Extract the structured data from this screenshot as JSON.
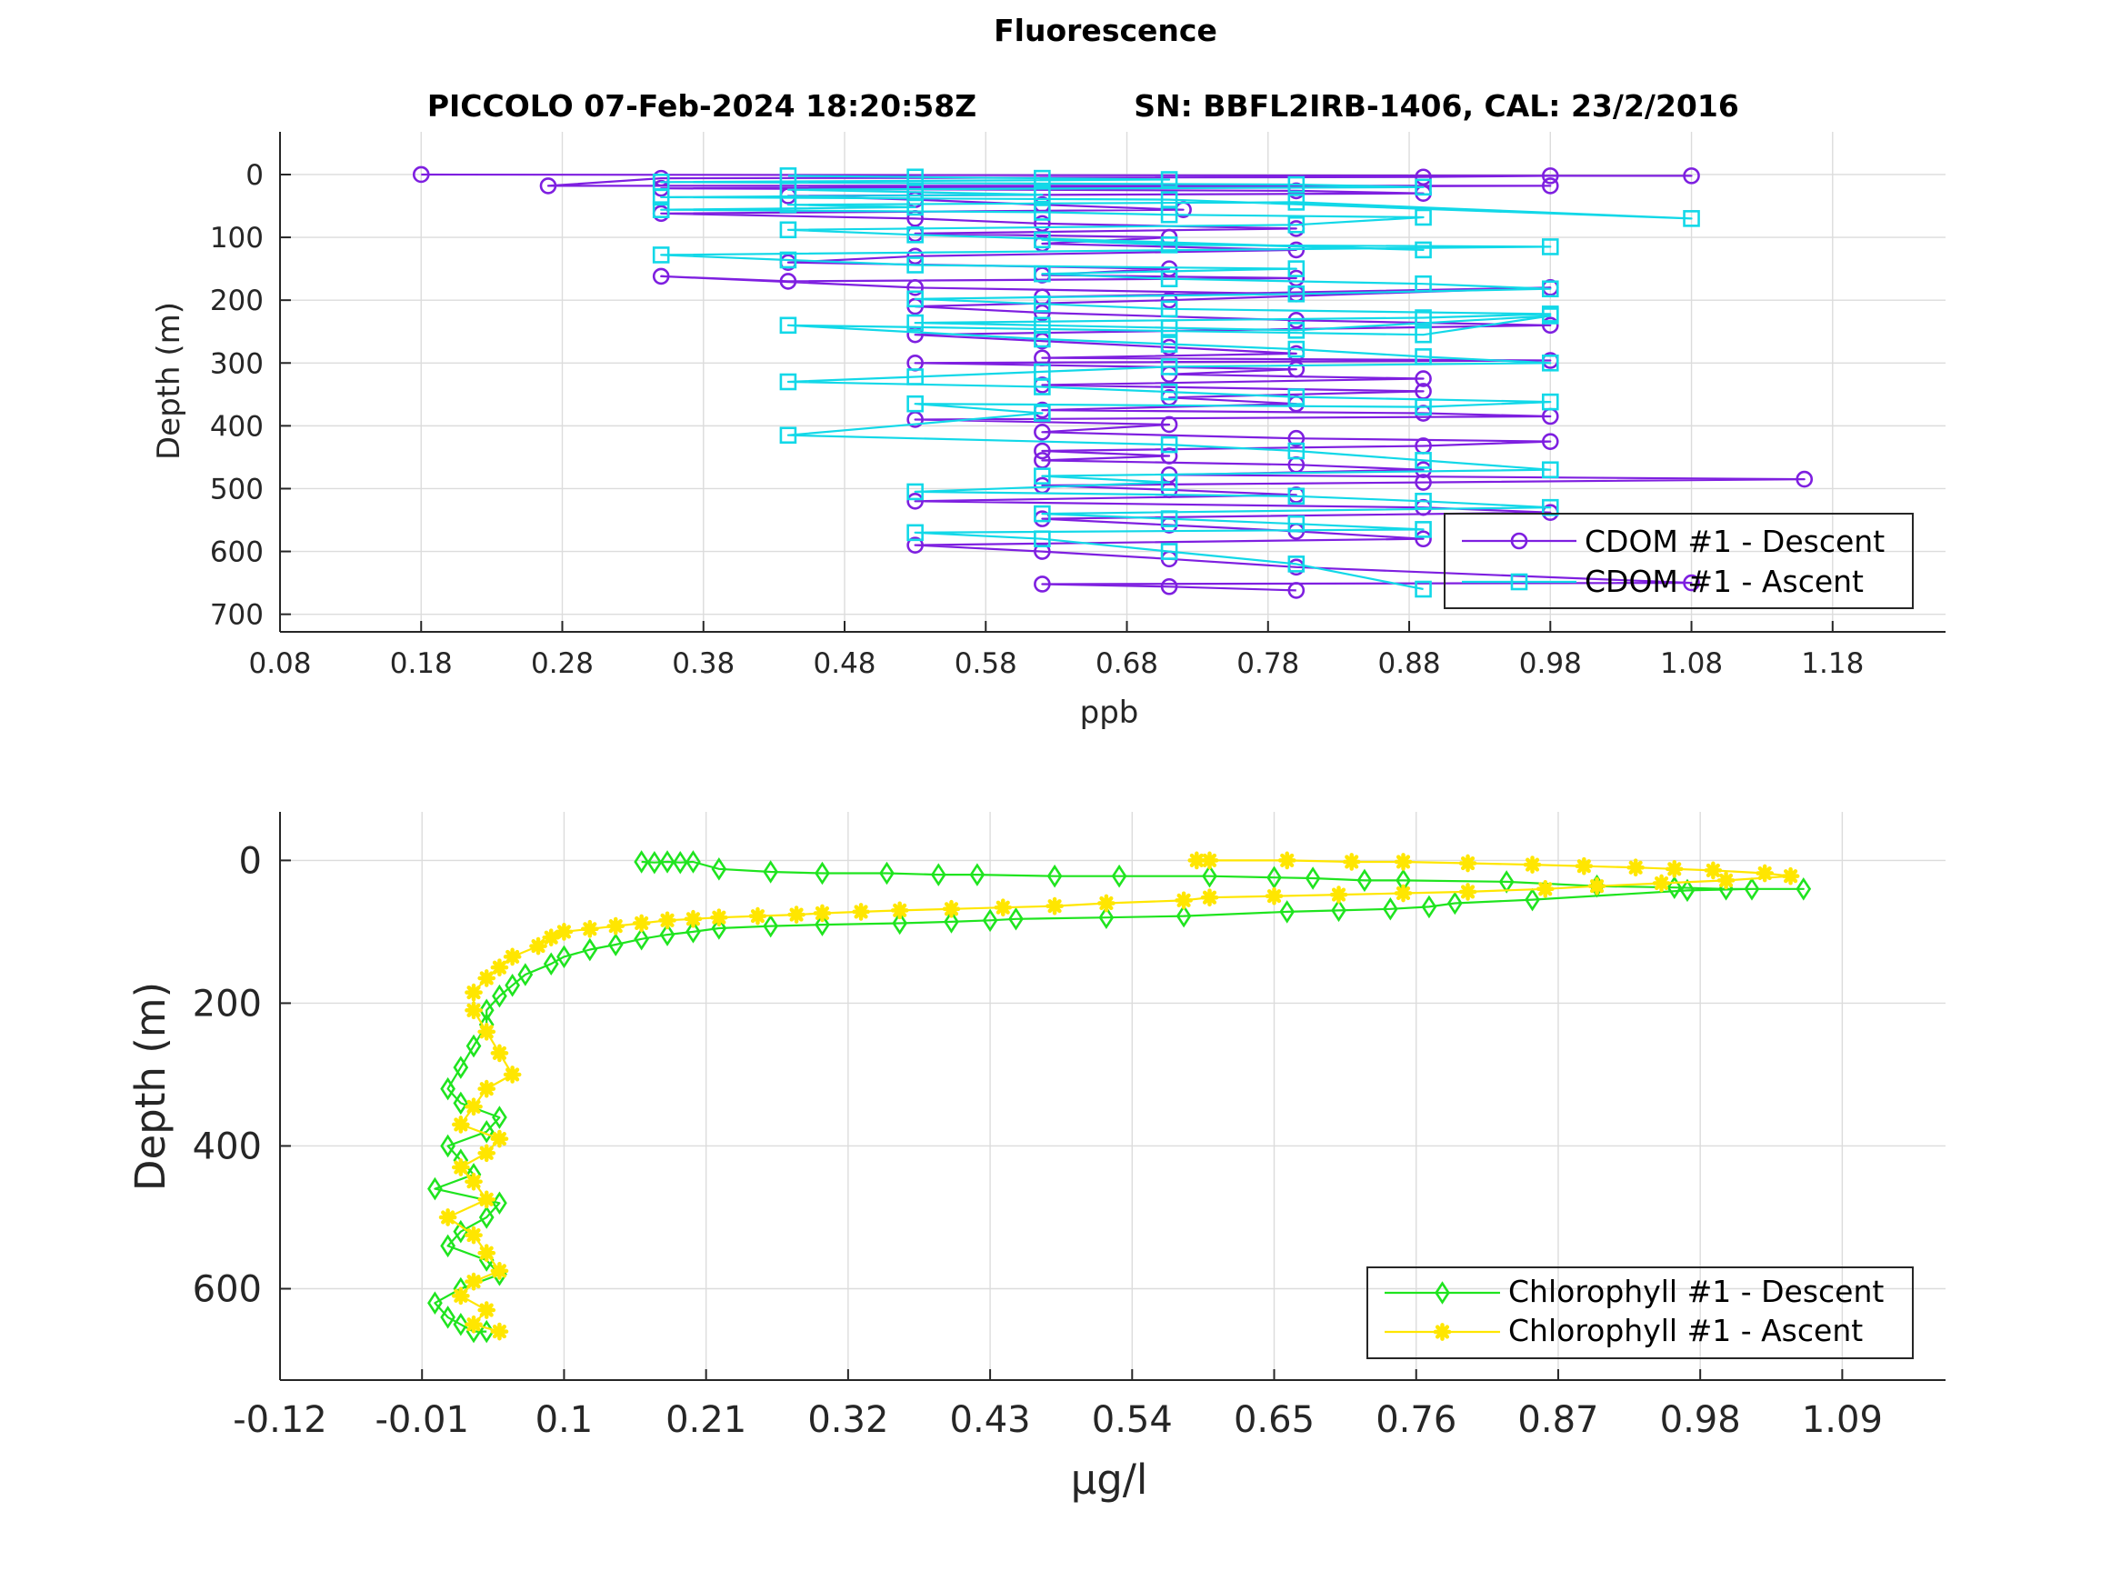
{
  "figure": {
    "title": "Fluorescence",
    "subtitle_left": "PICCOLO 07-Feb-2024 18:20:58Z",
    "subtitle_right": "SN: BBFL2IRB-1406, CAL: 23/2/2016"
  },
  "chart_data": [
    {
      "type": "line",
      "xlabel": "ppb",
      "ylabel": "Depth (m)",
      "xlim": [
        0.08,
        1.26
      ],
      "ylim": [
        728,
        -68
      ],
      "y_reversed": true,
      "grid": true,
      "legend_position": "bottom-right",
      "xticks": [
        0.08,
        0.18,
        0.28,
        0.38,
        0.48,
        0.58,
        0.68,
        0.78,
        0.88,
        0.98,
        1.08,
        1.18
      ],
      "xtick_labels": [
        "0.08",
        "0.18",
        "0.28",
        "0.38",
        "0.48",
        "0.58",
        "0.68",
        "0.78",
        "0.88",
        "0.98",
        "1.08",
        "1.18"
      ],
      "yticks": [
        0,
        100,
        200,
        300,
        400,
        500,
        600,
        700
      ],
      "ytick_labels": [
        "0",
        "100",
        "200",
        "300",
        "400",
        "500",
        "600",
        "700"
      ],
      "series": [
        {
          "name": "CDOM #1 - Descent",
          "color": "#7e1fe0",
          "marker": "circle",
          "x": [
            0.18,
            1.08,
            0.98,
            0.89,
            0.35,
            0.27,
            0.98,
            0.35,
            0.8,
            0.89,
            0.44,
            0.53,
            0.62,
            0.72,
            0.35,
            0.53,
            0.62,
            0.8,
            0.53,
            0.71,
            0.62,
            0.8,
            0.53,
            0.44,
            0.71,
            0.62,
            0.8,
            0.44,
            0.35,
            0.53,
            0.8,
            0.62,
            0.98,
            0.71,
            0.53,
            0.62,
            0.8,
            0.98,
            0.53,
            0.62,
            0.71,
            0.8,
            0.62,
            0.98,
            0.53,
            0.8,
            0.71,
            0.89,
            0.62,
            0.89,
            0.71,
            0.8,
            0.62,
            0.89,
            0.98,
            0.53,
            0.71,
            0.62,
            0.8,
            0.98,
            0.89,
            0.62,
            0.71,
            0.62,
            0.8,
            0.89,
            0.71,
            1.16,
            0.89,
            0.62,
            0.71,
            0.8,
            0.53,
            0.89,
            0.98,
            0.62,
            0.71,
            0.8,
            0.89,
            0.53,
            0.62,
            0.71,
            0.8,
            1.08,
            0.62,
            0.71,
            0.8
          ],
          "y": [
            0,
            2,
            2,
            4,
            6,
            18,
            18,
            22,
            26,
            30,
            34,
            40,
            48,
            56,
            62,
            70,
            78,
            86,
            94,
            100,
            110,
            120,
            130,
            140,
            150,
            160,
            165,
            170,
            162,
            180,
            190,
            195,
            180,
            200,
            210,
            220,
            232,
            240,
            255,
            265,
            275,
            285,
            292,
            296,
            300,
            310,
            318,
            325,
            335,
            345,
            355,
            365,
            375,
            380,
            385,
            390,
            398,
            410,
            420,
            425,
            432,
            440,
            448,
            455,
            462,
            470,
            478,
            485,
            490,
            495,
            502,
            510,
            520,
            530,
            538,
            548,
            558,
            568,
            580,
            590,
            600,
            612,
            625,
            650,
            652,
            656,
            662
          ]
        },
        {
          "name": "CDOM #1 - Ascent",
          "color": "#12d8e8",
          "marker": "square",
          "x": [
            0.44,
            0.53,
            0.62,
            0.71,
            0.35,
            0.8,
            0.89,
            0.44,
            0.53,
            0.62,
            0.35,
            0.71,
            1.08,
            0.8,
            0.44,
            0.53,
            0.35,
            0.62,
            0.71,
            0.89,
            0.8,
            0.44,
            0.53,
            0.89,
            0.62,
            0.71,
            0.98,
            0.35,
            0.44,
            0.53,
            0.8,
            0.62,
            0.71,
            0.89,
            0.98,
            0.8,
            0.53,
            0.62,
            0.71,
            0.98,
            0.89,
            0.53,
            0.62,
            0.71,
            0.8,
            0.98,
            0.89,
            0.44,
            0.62,
            0.71,
            0.8,
            0.89,
            0.98,
            0.71,
            0.62,
            0.53,
            0.44,
            0.62,
            0.71,
            0.8,
            0.98,
            0.89,
            0.53,
            0.62,
            0.44,
            0.71,
            0.8,
            0.89,
            0.98,
            0.62,
            0.71,
            0.53,
            0.8,
            0.89,
            0.98,
            0.62,
            0.71,
            0.8,
            0.89,
            0.53,
            0.62,
            0.71,
            0.8,
            0.89
          ],
          "y": [
            2,
            4,
            6,
            8,
            12,
            16,
            20,
            24,
            28,
            32,
            36,
            40,
            70,
            44,
            48,
            52,
            56,
            60,
            64,
            68,
            80,
            88,
            96,
            120,
            104,
            112,
            115,
            128,
            136,
            144,
            150,
            158,
            166,
            174,
            182,
            190,
            198,
            206,
            214,
            222,
            228,
            236,
            240,
            244,
            248,
            225,
            255,
            240,
            262,
            270,
            278,
            290,
            300,
            306,
            314,
            322,
            330,
            338,
            346,
            354,
            362,
            370,
            365,
            380,
            415,
            430,
            440,
            455,
            470,
            480,
            490,
            505,
            512,
            520,
            530,
            540,
            548,
            556,
            565,
            570,
            580,
            600,
            620,
            660
          ]
        }
      ]
    },
    {
      "type": "line",
      "xlabel": "μg/l",
      "ylabel": "Depth (m)",
      "xlim": [
        -0.12,
        1.17
      ],
      "ylim": [
        728,
        -68
      ],
      "y_reversed": true,
      "grid": true,
      "legend_position": "bottom-right",
      "xticks": [
        -0.12,
        -0.01,
        0.1,
        0.21,
        0.32,
        0.43,
        0.54,
        0.65,
        0.76,
        0.87,
        0.98,
        1.09
      ],
      "xtick_labels": [
        "-0.12",
        "-0.01",
        "0.1",
        "0.21",
        "0.32",
        "0.43",
        "0.54",
        "0.65",
        "0.76",
        "0.87",
        "0.98",
        "1.09"
      ],
      "yticks": [
        0,
        200,
        400,
        600
      ],
      "ytick_labels": [
        "0",
        "200",
        "400",
        "600"
      ],
      "series": [
        {
          "name": "Chlorophyll #1 - Descent",
          "color": "#1fe41f",
          "marker": "diamond",
          "x": [
            0.16,
            0.17,
            0.18,
            0.19,
            0.2,
            0.22,
            0.26,
            0.3,
            0.35,
            0.39,
            0.42,
            0.48,
            0.53,
            0.6,
            0.65,
            0.68,
            0.72,
            0.75,
            0.83,
            0.9,
            0.96,
            1.0,
            1.06,
            1.02,
            0.97,
            0.85,
            0.79,
            0.77,
            0.74,
            0.7,
            0.66,
            0.58,
            0.52,
            0.45,
            0.43,
            0.4,
            0.36,
            0.3,
            0.26,
            0.22,
            0.2,
            0.18,
            0.16,
            0.14,
            0.12,
            0.1,
            0.09,
            0.07,
            0.06,
            0.05,
            0.04,
            0.04,
            0.03,
            0.02,
            0.01,
            0.02,
            0.05,
            0.04,
            0.01,
            0.02,
            0.03,
            0.0,
            0.05,
            0.04,
            0.02,
            0.01,
            0.04,
            0.05,
            0.02,
            0.0,
            0.01,
            0.02,
            0.03,
            0.04
          ],
          "y": [
            2,
            3,
            2,
            3,
            2,
            12,
            16,
            18,
            18,
            20,
            20,
            22,
            22,
            22,
            24,
            25,
            28,
            28,
            30,
            36,
            38,
            40,
            40,
            40,
            42,
            55,
            60,
            65,
            68,
            70,
            72,
            78,
            80,
            82,
            84,
            86,
            88,
            90,
            92,
            95,
            100,
            104,
            110,
            118,
            125,
            135,
            145,
            160,
            175,
            190,
            210,
            230,
            260,
            290,
            320,
            340,
            360,
            380,
            400,
            420,
            440,
            460,
            480,
            500,
            520,
            540,
            560,
            580,
            600,
            620,
            640,
            650,
            660,
            660
          ]
        },
        {
          "name": "Chlorophyll #1 - Ascent",
          "color": "#ffe600",
          "marker": "asterisk",
          "x": [
            0.59,
            0.6,
            0.66,
            0.71,
            0.75,
            0.8,
            0.85,
            0.89,
            0.93,
            0.96,
            0.99,
            1.03,
            1.05,
            1.0,
            0.95,
            0.9,
            0.86,
            0.8,
            0.75,
            0.7,
            0.65,
            0.6,
            0.58,
            0.52,
            0.48,
            0.44,
            0.4,
            0.36,
            0.33,
            0.3,
            0.28,
            0.25,
            0.22,
            0.2,
            0.18,
            0.16,
            0.14,
            0.12,
            0.1,
            0.09,
            0.08,
            0.06,
            0.05,
            0.04,
            0.03,
            0.03,
            0.04,
            0.05,
            0.06,
            0.04,
            0.03,
            0.02,
            0.05,
            0.04,
            0.02,
            0.03,
            0.04,
            0.01,
            0.03,
            0.04,
            0.05,
            0.03,
            0.02,
            0.04,
            0.03,
            0.05
          ],
          "y": [
            0,
            0,
            0,
            2,
            2,
            4,
            6,
            8,
            10,
            12,
            14,
            18,
            22,
            28,
            32,
            36,
            40,
            44,
            46,
            48,
            50,
            52,
            56,
            60,
            64,
            66,
            68,
            70,
            72,
            74,
            76,
            78,
            80,
            82,
            84,
            88,
            92,
            96,
            100,
            108,
            120,
            135,
            150,
            165,
            185,
            210,
            240,
            270,
            300,
            320,
            345,
            370,
            390,
            410,
            430,
            450,
            475,
            500,
            525,
            550,
            575,
            590,
            610,
            630,
            650,
            660
          ]
        }
      ]
    }
  ]
}
